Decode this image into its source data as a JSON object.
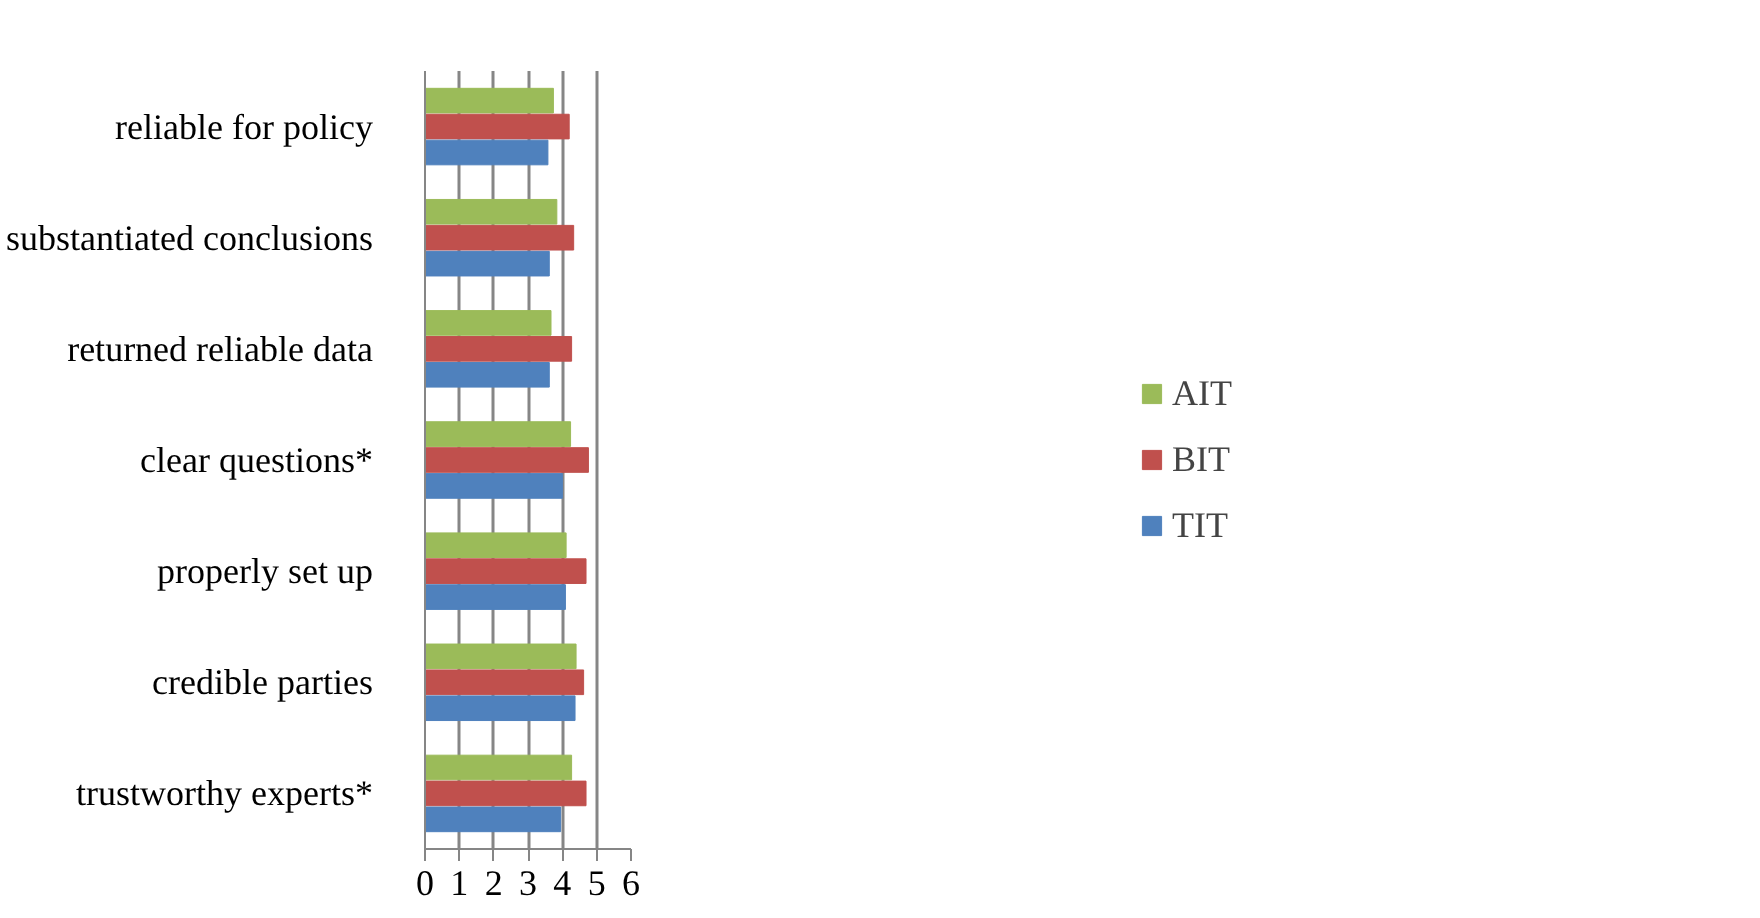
{
  "chart_data": {
    "type": "bar",
    "orientation": "horizontal",
    "categories": [
      "reliable for policy",
      "substantiated conclusions",
      "returned reliable data",
      "clear questions*",
      "properly set up",
      "credible parties",
      "trustworthy experts*"
    ],
    "series": [
      {
        "name": "AIT",
        "color": "#9bbb59",
        "values": [
          3.74,
          3.84,
          3.67,
          4.24,
          4.11,
          4.4,
          4.27
        ]
      },
      {
        "name": "BIT",
        "color": "#c0504d",
        "values": [
          4.2,
          4.33,
          4.27,
          4.76,
          4.69,
          4.62,
          4.69
        ]
      },
      {
        "name": "TIT",
        "color": "#4f81bd",
        "values": [
          3.58,
          3.62,
          3.62,
          4.0,
          4.09,
          4.37,
          3.95
        ]
      }
    ],
    "xlim": [
      0,
      6
    ],
    "xticks": [
      0,
      1,
      2,
      3,
      4,
      5,
      6
    ],
    "grid": "x",
    "legend": "right"
  }
}
